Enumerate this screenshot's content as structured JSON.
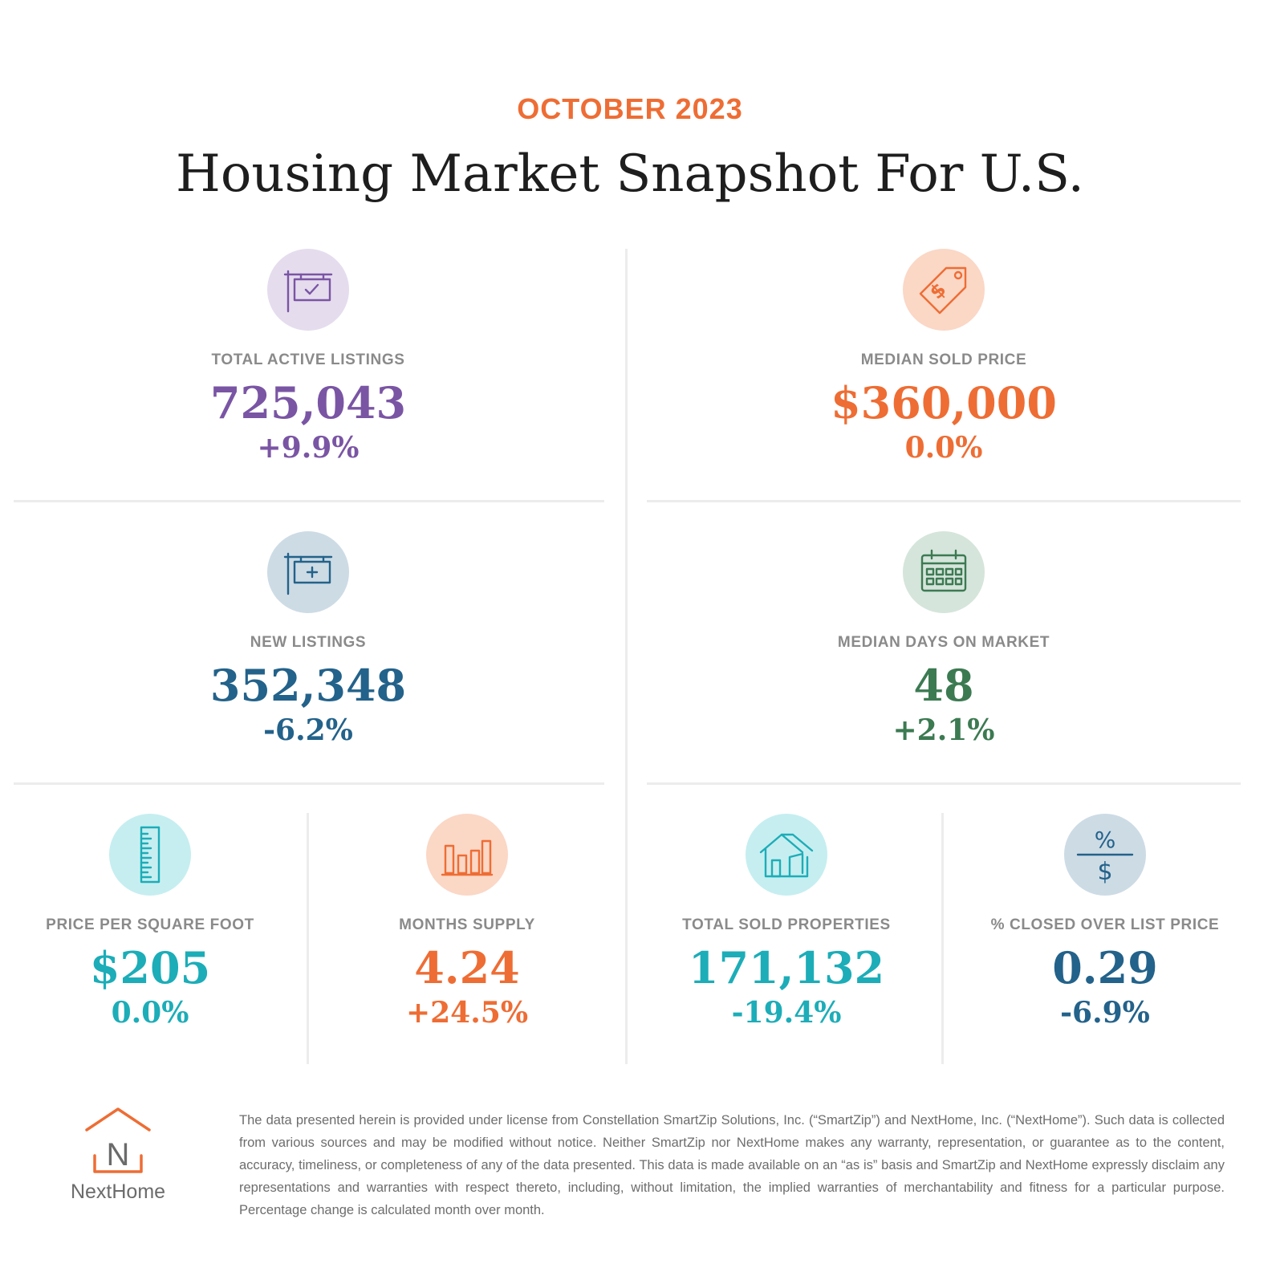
{
  "header": {
    "subtitle": "OCTOBER 2023",
    "title": "Housing Market Snapshot For U.S."
  },
  "colors": {
    "purple": "#7a55a4",
    "orange": "#ee6d34",
    "navy": "#23628a",
    "green": "#3c7a52",
    "teal": "#1cadb8",
    "purple_bg": "#e5dcee",
    "orange_bg": "#fbd7c6",
    "navy_bg": "#cddbe5",
    "green_bg": "#d5e5db",
    "teal_bg": "#c6eef0"
  },
  "stats": {
    "total_active_listings": {
      "icon": "listing-sign-check-icon",
      "label": "TOTAL ACTIVE LISTINGS",
      "value": "725,043",
      "change": "+9.9%"
    },
    "median_sold_price": {
      "icon": "price-tag-icon",
      "label": "MEDIAN SOLD PRICE",
      "value": "$360,000",
      "change": "0.0%"
    },
    "new_listings": {
      "icon": "listing-sign-plus-icon",
      "label": "NEW LISTINGS",
      "value": "352,348",
      "change": "-6.2%"
    },
    "median_days_on_market": {
      "icon": "calendar-icon",
      "label": "MEDIAN DAYS ON MARKET",
      "value": "48",
      "change": "+2.1%"
    },
    "price_per_square_foot": {
      "icon": "ruler-icon",
      "label": "PRICE PER SQUARE FOOT",
      "value": "$205",
      "change": "0.0%"
    },
    "months_supply": {
      "icon": "bar-chart-icon",
      "label": "MONTHS SUPPLY",
      "value": "4.24",
      "change": "+24.5%"
    },
    "total_sold_properties": {
      "icon": "house-icon",
      "label": "TOTAL SOLD PROPERTIES",
      "value": "171,132",
      "change": "-19.4%"
    },
    "closed_over_list_price": {
      "icon": "percent-dollar-icon",
      "label": "% CLOSED OVER LIST PRICE",
      "value": "0.29",
      "change": "-6.9%"
    }
  },
  "footer": {
    "logo_letter": "N",
    "logo_text": "NextHome",
    "disclaimer": "The data presented herein is provided under license from Constellation SmartZip Solutions, Inc. (“SmartZip”) and NextHome, Inc. (“NextHome”). Such data is collected from various sources and may be modified without notice. Neither SmartZip nor NextHome makes any warranty, representation, or guarantee as to the content, accuracy, timeliness, or completeness of any of the data presented. This data is made available on an “as is” basis and SmartZip and NextHome expressly disclaim any representations and warranties with respect thereto, including, without limitation, the implied warranties of merchantability and fitness for a particular purpose. Percentage change is calculated month over month."
  }
}
